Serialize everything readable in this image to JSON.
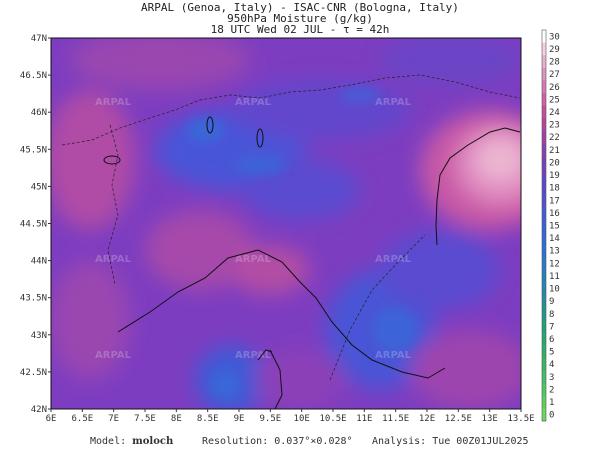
{
  "header": {
    "line1": "ARPAL (Genoa, Italy)  -  ISAC-CNR (Bologna, Italy)",
    "line2": "950hPa Moisture (g/kg)",
    "line3": "18 UTC Wed 02 JUL  -  τ = 42h"
  },
  "map": {
    "lat_labels": [
      "47N",
      "46.5N",
      "46N",
      "45.5N",
      "45N",
      "44.5N",
      "44N",
      "43.5N",
      "43N",
      "42.5N",
      "42N"
    ],
    "lon_labels": [
      "6E",
      "6.5E",
      "7E",
      "7.5E",
      "8E",
      "8.5E",
      "9E",
      "9.5E",
      "10E",
      "10.5E",
      "11E",
      "11.5E",
      "12E",
      "12.5E",
      "13E",
      "13.5E"
    ],
    "watermark": "ARPAL"
  },
  "colorbar": {
    "labels": [
      "30",
      "29",
      "28",
      "27",
      "26",
      "25",
      "24",
      "23",
      "22",
      "21",
      "20",
      "19",
      "18",
      "17",
      "16",
      "15",
      "14",
      "13",
      "12",
      "11",
      "10",
      "9",
      "8",
      "7",
      "6",
      "5",
      "4",
      "3",
      "2",
      "1",
      "0"
    ],
    "colors": [
      "#ffffff",
      "#f3d0e3",
      "#e9b0cf",
      "#e193bf",
      "#d978b0",
      "#cf63a4",
      "#c34f9c",
      "#b3459f",
      "#a040a8",
      "#8c3fb2",
      "#7a3fbd",
      "#6a42c6",
      "#5c48cc",
      "#5050d2",
      "#4658d6",
      "#3c60d8",
      "#3468d6",
      "#2e70d2",
      "#2a78c8",
      "#2680bc",
      "#2488ac",
      "#22909a",
      "#22988a",
      "#24a07c",
      "#28a872",
      "#30b06a",
      "#38b864",
      "#44c060",
      "#50c85e",
      "#5ed05e",
      "#6cd860"
    ]
  },
  "footer": {
    "model_label": "Model:",
    "model_value": "moloch",
    "resolution_label": "Resolution:",
    "resolution_value": "0.037°×0.028°",
    "analysis_label": "Analysis:",
    "analysis_value": "Tue 00Z01JUL2025"
  }
}
